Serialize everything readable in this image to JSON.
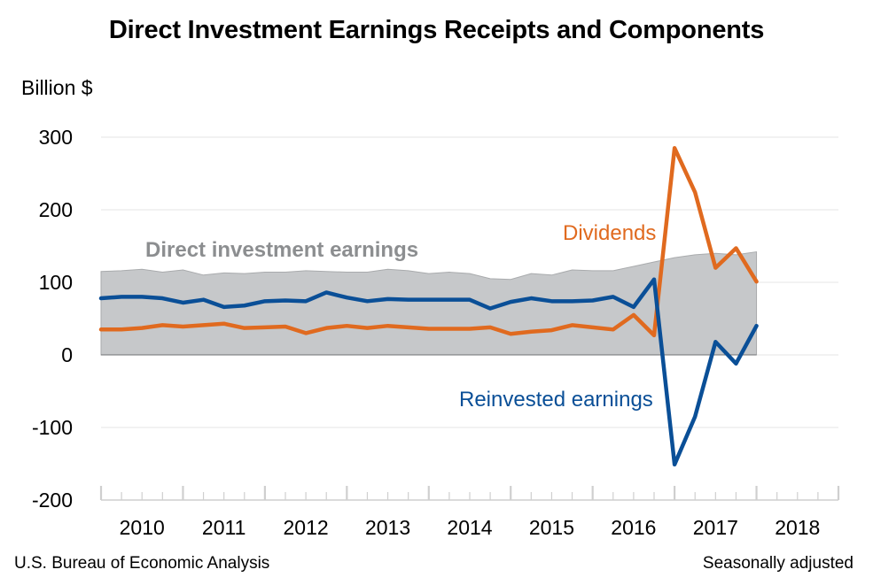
{
  "title": "Direct Investment Earnings Receipts and Components",
  "y_unit": "Billion $",
  "footer": {
    "source": "U.S. Bureau of Economic Analysis",
    "note": "Seasonally adjusted"
  },
  "colors": {
    "area": "#c6c8ca",
    "area_edge": "#a9abad",
    "dividends": "#e06a1f",
    "reinvested": "#0a4f97",
    "area_label": "#8c8e90",
    "grid": "#e4e4e4",
    "axis": "#cfcfcf"
  },
  "chart_data": {
    "type": "area",
    "title": "Direct Investment Earnings Receipts and Components",
    "ylabel": "Billion $",
    "ylim": [
      -200,
      300
    ],
    "yticks": [
      "300",
      "200",
      "100",
      "0",
      "-100",
      "-200"
    ],
    "ytick_values": [
      300,
      200,
      100,
      0,
      -100,
      -200
    ],
    "xlim": [
      2010.0,
      2019.0
    ],
    "xticks": [
      "2010",
      "2011",
      "2012",
      "2013",
      "2014",
      "2015",
      "2016",
      "2017",
      "2018"
    ],
    "grid": true,
    "x": [
      2010.0,
      2010.25,
      2010.5,
      2010.75,
      2011.0,
      2011.25,
      2011.5,
      2011.75,
      2012.0,
      2012.25,
      2012.5,
      2012.75,
      2013.0,
      2013.25,
      2013.5,
      2013.75,
      2014.0,
      2014.25,
      2014.5,
      2014.75,
      2015.0,
      2015.25,
      2015.5,
      2015.75,
      2016.0,
      2016.25,
      2016.5,
      2016.75,
      2017.0,
      2017.25,
      2017.5,
      2017.75,
      2018.0
    ],
    "series": [
      {
        "name": "Direct investment earnings",
        "kind": "area",
        "values": [
          115,
          116,
          118,
          114,
          117,
          110,
          113,
          112,
          114,
          114,
          116,
          115,
          114,
          114,
          118,
          116,
          112,
          114,
          112,
          105,
          104,
          112,
          110,
          117,
          116,
          116,
          122,
          128,
          134,
          138,
          140,
          138,
          142
        ]
      },
      {
        "name": "Dividends",
        "kind": "line",
        "values": [
          35,
          35,
          37,
          41,
          39,
          41,
          43,
          37,
          38,
          39,
          30,
          37,
          40,
          37,
          40,
          38,
          36,
          36,
          36,
          38,
          29,
          32,
          34,
          41,
          38,
          35,
          55,
          27,
          285,
          224,
          120,
          147,
          101
        ]
      },
      {
        "name": "Reinvested earnings",
        "kind": "line",
        "values": [
          78,
          80,
          80,
          78,
          72,
          76,
          66,
          68,
          74,
          75,
          74,
          86,
          79,
          74,
          77,
          76,
          76,
          76,
          76,
          64,
          73,
          78,
          74,
          74,
          75,
          80,
          66,
          104,
          -151,
          -85,
          18,
          -12,
          40
        ]
      }
    ],
    "annotations": [
      {
        "text": "Direct investment earnings",
        "series": "Direct investment earnings"
      },
      {
        "text": "Dividends",
        "series": "Dividends"
      },
      {
        "text": "Reinvested earnings",
        "series": "Reinvested earnings"
      }
    ]
  }
}
